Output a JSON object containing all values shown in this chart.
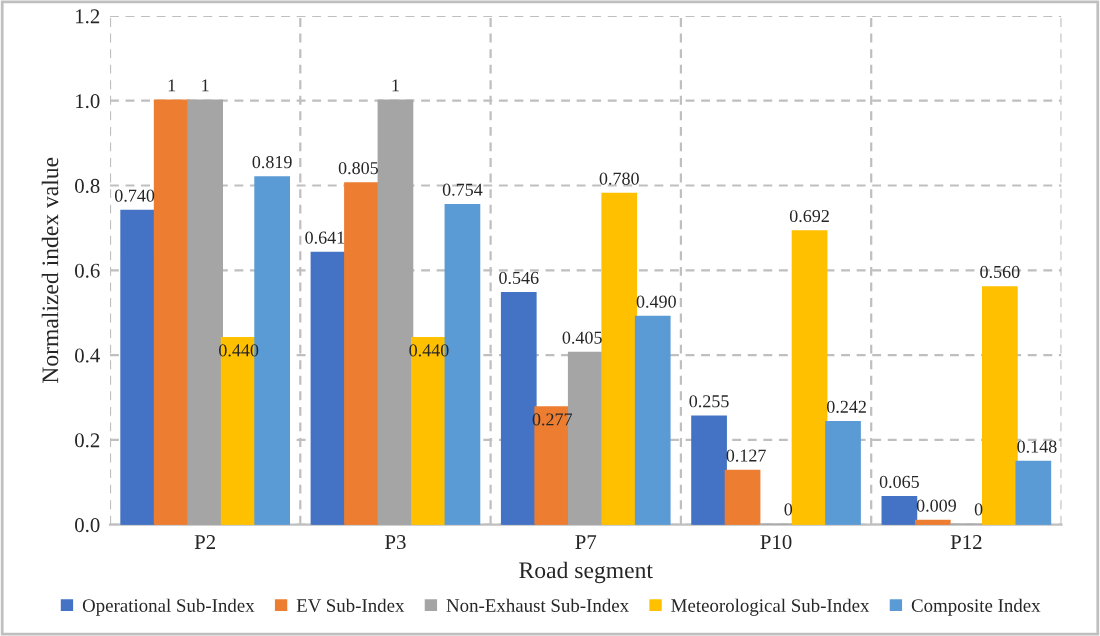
{
  "chart_data": {
    "type": "bar",
    "xlabel": "Road segment",
    "ylabel": "Normalized index value",
    "categories": [
      "P2",
      "P3",
      "P7",
      "P10",
      "P12"
    ],
    "series": [
      {
        "name": "Operational Sub-Index",
        "color": "#4472c4",
        "values": [
          0.74,
          0.641,
          0.546,
          0.255,
          0.065
        ],
        "value_labels": [
          "0.740",
          "0.641",
          "0.546",
          "0.255",
          "0.065"
        ]
      },
      {
        "name": "EV Sub-Index",
        "color": "#ed7d31",
        "values": [
          1,
          0.805,
          0.277,
          0.127,
          0.009
        ],
        "value_labels": [
          "1",
          "0.805",
          "0.277",
          "0.127",
          "0.009"
        ]
      },
      {
        "name": "Non-Exhaust Sub-Index",
        "color": "#a5a5a5",
        "values": [
          1,
          1,
          0.405,
          0,
          0
        ],
        "value_labels": [
          "1",
          "1",
          "0.405",
          "0",
          "0"
        ]
      },
      {
        "name": "Meteorological Sub-Index",
        "color": "#ffc000",
        "values": [
          0.44,
          0.44,
          0.78,
          0.692,
          0.56
        ],
        "value_labels": [
          "0.440",
          "0.440",
          "0.780",
          "0.692",
          "0.560"
        ]
      },
      {
        "name": "Composite Index",
        "color": "#5b9bd5",
        "values": [
          0.819,
          0.754,
          0.49,
          0.242,
          0.148
        ],
        "value_labels": [
          "0.819",
          "0.754",
          "0.490",
          "0.242",
          "0.148"
        ]
      }
    ],
    "ylim": [
      0,
      1.2
    ],
    "yticks": [
      {
        "value": 0,
        "label": "0.0"
      },
      {
        "value": 0.2,
        "label": "0.2"
      },
      {
        "value": 0.4,
        "label": "0.4"
      },
      {
        "value": 0.6,
        "label": "0.6"
      },
      {
        "value": 0.8,
        "label": "0.8"
      },
      {
        "value": 1.0,
        "label": "1.0"
      },
      {
        "value": 1.2,
        "label": "1.2"
      }
    ],
    "grid": true,
    "legend": "bottom"
  }
}
